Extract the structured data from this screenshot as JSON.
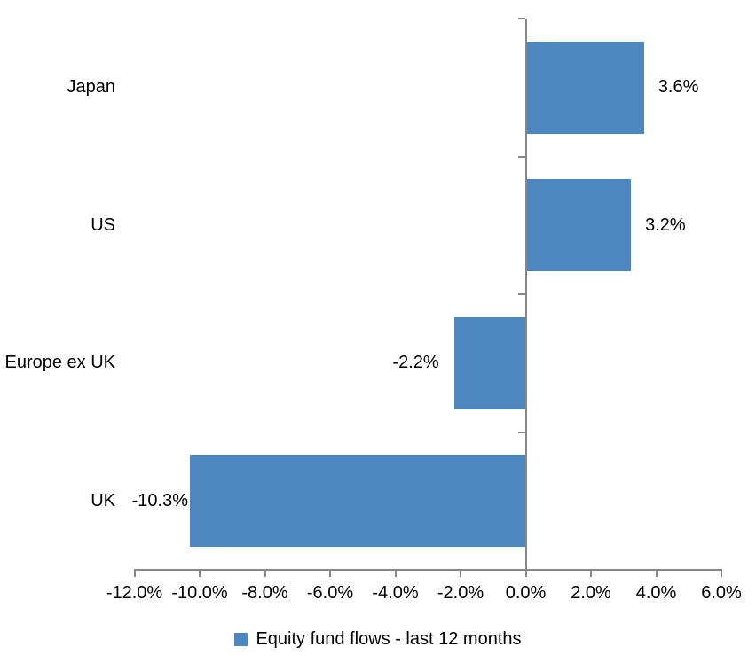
{
  "chart_data": {
    "type": "bar",
    "orientation": "horizontal",
    "title": "",
    "categories": [
      "Japan",
      "US",
      "Europe ex UK",
      "UK"
    ],
    "values": [
      3.6,
      3.2,
      -2.2,
      -10.3
    ],
    "data_labels": [
      "3.6%",
      "3.2%",
      "-2.2%",
      "-10.3%"
    ],
    "series": [
      {
        "name": "Equity fund flows - last 12 months",
        "values": [
          3.6,
          3.2,
          -2.2,
          -10.3
        ]
      }
    ],
    "legend": "Equity fund flows - last 12 months",
    "legend_position": "bottom",
    "xlabel": "",
    "ylabel": "",
    "xlim": [
      -12,
      6
    ],
    "x_tick_step": 2,
    "x_ticks": [
      {
        "value": -12,
        "label": "-12.0%"
      },
      {
        "value": -10,
        "label": "-10.0%"
      },
      {
        "value": -8,
        "label": "-8.0%"
      },
      {
        "value": -6,
        "label": "-6.0%"
      },
      {
        "value": -4,
        "label": "-4.0%"
      },
      {
        "value": -2,
        "label": "-2.0%"
      },
      {
        "value": 0,
        "label": "0.0%"
      },
      {
        "value": 2,
        "label": "2.0%"
      },
      {
        "value": 4,
        "label": "4.0%"
      },
      {
        "value": 6,
        "label": "6.0%"
      }
    ],
    "grid": false,
    "bar_color": "#4E86C0",
    "axis_color": "#878787",
    "text_color": "#000000",
    "background_color": "#FFFFFF"
  }
}
